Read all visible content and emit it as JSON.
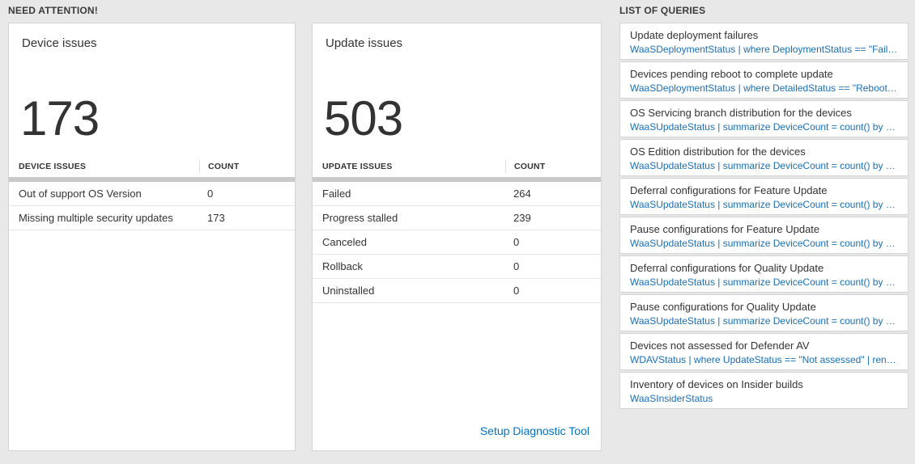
{
  "need_attention": {
    "header": "NEED ATTENTION!",
    "cards": [
      {
        "title": "Device issues",
        "big_number": "173",
        "table": {
          "headers": [
            "DEVICE ISSUES",
            "COUNT"
          ],
          "rows": [
            [
              "Out of support OS Version",
              "0"
            ],
            [
              "Missing multiple security updates",
              "173"
            ]
          ]
        }
      },
      {
        "title": "Update issues",
        "big_number": "503",
        "table": {
          "headers": [
            "UPDATE ISSUES",
            "COUNT"
          ],
          "rows": [
            [
              "Failed",
              "264"
            ],
            [
              "Progress stalled",
              "239"
            ],
            [
              "Canceled",
              "0"
            ],
            [
              "Rollback",
              "0"
            ],
            [
              "Uninstalled",
              "0"
            ]
          ]
        },
        "footer_link": "Setup Diagnostic Tool"
      }
    ]
  },
  "queries": {
    "header": "LIST OF QUERIES",
    "items": [
      {
        "title": "Update deployment failures",
        "query": "WaaSDeploymentStatus | where DeploymentStatus == \"Failed\" |..."
      },
      {
        "title": "Devices pending reboot to complete update",
        "query": "WaaSDeploymentStatus | where DetailedStatus == \"Reboot pend..."
      },
      {
        "title": "OS Servicing branch distribution for the devices",
        "query": "WaaSUpdateStatus | summarize DeviceCount = count() by OSSer..."
      },
      {
        "title": "OS Edition distribution for the devices",
        "query": "WaaSUpdateStatus | summarize DeviceCount = count() by OSEdit..."
      },
      {
        "title": "Deferral configurations for Feature Update",
        "query": "WaaSUpdateStatus | summarize DeviceCount = count() by Featur..."
      },
      {
        "title": "Pause configurations for Feature Update",
        "query": "WaaSUpdateStatus | summarize DeviceCount = count() by Featur..."
      },
      {
        "title": "Deferral configurations for Quality Update",
        "query": "WaaSUpdateStatus | summarize DeviceCount = count() by Qualit..."
      },
      {
        "title": "Pause configurations for Quality Update",
        "query": "WaaSUpdateStatus | summarize DeviceCount = count() by Qualit..."
      },
      {
        "title": "Devices not assessed for Defender AV",
        "query": "WDAVStatus | where UpdateStatus == \"Not assessed\" | render ta..."
      },
      {
        "title": "Inventory of devices on Insider builds",
        "query": "WaaSInsiderStatus"
      }
    ]
  },
  "colors": {
    "background": "#e8e8e8",
    "card_border": "#d4d4d4",
    "text_dark": "#333333",
    "link_blue": "#0072c6",
    "query_blue": "#1a6fb8",
    "scroll_bar_gray": "#c9c9c9"
  }
}
